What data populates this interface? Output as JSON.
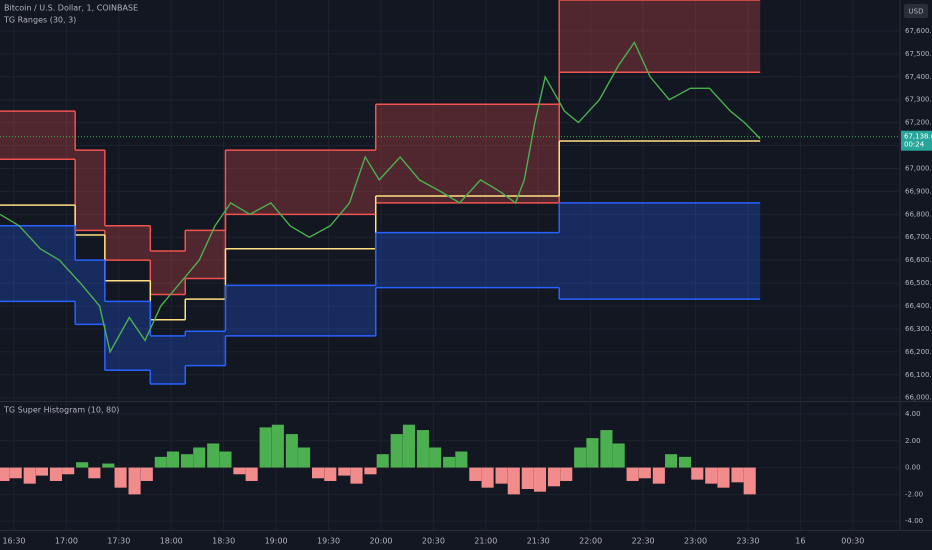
{
  "chart_data": [
    {
      "type": "line",
      "title": "Bitcoin / U.S. Dollar, 1, COINBASE",
      "subtitle": "TG Ranges (30, 3)",
      "currency": "USD",
      "last_value": {
        "value": 67138.61,
        "label": "67,138.61"
      },
      "countdown": "00:24",
      "xlim": [
        22,
        537
      ],
      "xticks": [
        {
          "value": 30,
          "label": "16:30"
        },
        {
          "value": 60,
          "label": "17:00"
        },
        {
          "value": 90,
          "label": "17:30"
        },
        {
          "value": 120,
          "label": "18:00"
        },
        {
          "value": 150,
          "label": "18:30"
        },
        {
          "value": 180,
          "label": "19:00"
        },
        {
          "value": 210,
          "label": "19:30"
        },
        {
          "value": 240,
          "label": "20:00"
        },
        {
          "value": 270,
          "label": "20:30"
        },
        {
          "value": 300,
          "label": "21:00"
        },
        {
          "value": 330,
          "label": "21:30"
        },
        {
          "value": 360,
          "label": "22:00"
        },
        {
          "value": 390,
          "label": "22:30"
        },
        {
          "value": 420,
          "label": "23:00"
        },
        {
          "value": 450,
          "label": "23:30"
        },
        {
          "value": 480,
          "label": "16"
        },
        {
          "value": 510,
          "label": "00:30"
        }
      ],
      "ylim": [
        65990,
        67735
      ],
      "yticks": [
        {
          "value": 66000,
          "label": "66,000.00"
        },
        {
          "value": 66100,
          "label": "66,100.00"
        },
        {
          "value": 66200,
          "label": "66,200.00"
        },
        {
          "value": 66300,
          "label": "66,300.00"
        },
        {
          "value": 66400,
          "label": "66,400.00"
        },
        {
          "value": 66500,
          "label": "66,500.00"
        },
        {
          "value": 66600,
          "label": "66,600.00"
        },
        {
          "value": 66700,
          "label": "66,700.00"
        },
        {
          "value": 66800,
          "label": "66,800.00"
        },
        {
          "value": 66900,
          "label": "66,900.00"
        },
        {
          "value": 67000,
          "label": "67,000.00"
        },
        {
          "value": 67100,
          "label": "67,100.00"
        },
        {
          "value": 67200,
          "label": "67,200.00"
        },
        {
          "value": 67300,
          "label": "67,300.00"
        },
        {
          "value": 67400,
          "label": "67,400.00"
        },
        {
          "value": 67500,
          "label": "67,500.00"
        },
        {
          "value": 67600,
          "label": "67,600.00"
        }
      ],
      "grid": true,
      "price": {
        "color": "#4caf50",
        "x": [
          22,
          33,
          45,
          56,
          68,
          79,
          85,
          96,
          105,
          114,
          125,
          136,
          145,
          154,
          165,
          177,
          188,
          199,
          211,
          222,
          231,
          239,
          251,
          262,
          274,
          285,
          297,
          308,
          317,
          322,
          328,
          334,
          345,
          353,
          365,
          376,
          385,
          394,
          405,
          417,
          428,
          440,
          448,
          457
        ],
        "values": [
          66800,
          66750,
          66650,
          66600,
          66500,
          66400,
          66200,
          66350,
          66250,
          66400,
          66500,
          66600,
          66750,
          66850,
          66800,
          66850,
          66750,
          66700,
          66750,
          66850,
          67050,
          66950,
          67050,
          66950,
          66900,
          66850,
          66950,
          66900,
          66850,
          66950,
          67200,
          67400,
          67250,
          67200,
          67300,
          67450,
          67550,
          67400,
          67300,
          67350,
          67350,
          67250,
          67200,
          67130
        ]
      },
      "band_x": [
        22,
        65,
        82,
        108,
        128,
        151,
        237,
        342,
        457
      ],
      "series": [
        {
          "color": "#f05350",
          "fill": true,
          "values": [
            67250,
            67080,
            66750,
            66640,
            66730,
            67080,
            67280,
            67735,
            67735
          ]
        },
        {
          "color": "#f05350",
          "fill": false,
          "values": [
            67040,
            66730,
            66600,
            66450,
            66520,
            66800,
            66850,
            67420,
            67420
          ]
        },
        {
          "color": "#ffe082",
          "fill": false,
          "values": [
            66840,
            66710,
            66510,
            66340,
            66430,
            66650,
            66880,
            67120,
            67120
          ]
        },
        {
          "color": "#2962ff",
          "fill": true,
          "values": [
            66750,
            66600,
            66420,
            66270,
            66290,
            66490,
            66720,
            66850,
            66850
          ]
        },
        {
          "color": "#2962ff",
          "fill": false,
          "values": [
            66420,
            66320,
            66120,
            66060,
            66140,
            66270,
            66480,
            66430,
            66430
          ]
        }
      ]
    },
    {
      "type": "histogram",
      "title": "TG Super Histogram (10, 80)",
      "positive_color": "#4caf50",
      "negative_color": "#f28b8b",
      "ylim": [
        -4.66,
        4.82
      ],
      "yticks": [
        {
          "value": 4,
          "label": "4.00"
        },
        {
          "value": 2,
          "label": "2.00"
        },
        {
          "value": 0,
          "label": "0.00"
        },
        {
          "value": -2,
          "label": "-2.00"
        },
        {
          "value": -4,
          "label": "-4.00"
        }
      ],
      "x": [
        24,
        31,
        39,
        46,
        54,
        61,
        69,
        76,
        84,
        91,
        99,
        106,
        114,
        121,
        129,
        136,
        144,
        151,
        159,
        166,
        174,
        181,
        189,
        196,
        204,
        211,
        219,
        226,
        234,
        241,
        249,
        256,
        264,
        271,
        279,
        286,
        294,
        301,
        309,
        316,
        324,
        331,
        339,
        346,
        354,
        361,
        369,
        376,
        384,
        391,
        399,
        406,
        414,
        421,
        429,
        436,
        444,
        451
      ],
      "values": [
        -1,
        -0.8,
        -1.2,
        -0.6,
        -1,
        -0.5,
        0.4,
        -0.8,
        0.3,
        -1.5,
        -2,
        -1,
        0.8,
        1.2,
        1,
        1.5,
        1.8,
        1.2,
        -0.5,
        -1,
        3,
        3.2,
        2.5,
        1.5,
        -0.8,
        -1,
        -0.6,
        -1.2,
        -0.5,
        1,
        2.5,
        3.2,
        2.8,
        1.5,
        0.8,
        1.2,
        -1,
        -1.5,
        -1.2,
        -2,
        -1.6,
        -1.8,
        -1.4,
        -1,
        1.5,
        2.2,
        2.8,
        1.8,
        -1,
        -0.8,
        -1.2,
        1,
        0.8,
        -0.9,
        -1.2,
        -1.5,
        -1.1,
        -2
      ]
    }
  ]
}
